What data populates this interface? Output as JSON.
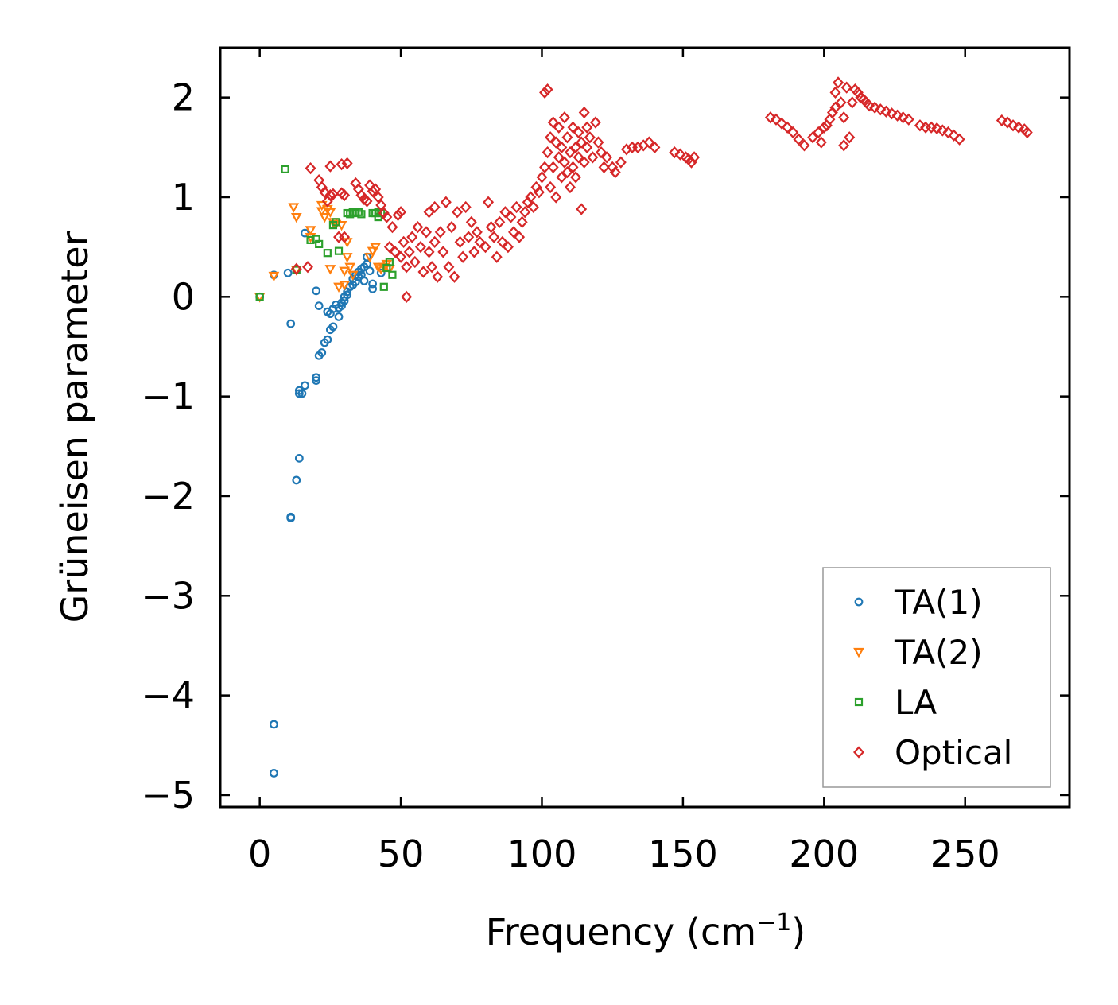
{
  "chart_data": {
    "type": "scatter",
    "title": "",
    "xlabel": "Frequency (cm",
    "xlabel_superscript": "−1",
    "xlabel_suffix": ")",
    "ylabel": "Grüneisen parameter",
    "xlim": [
      -14,
      287
    ],
    "ylim": [
      -5.12,
      2.5
    ],
    "xticks": [
      0,
      50,
      100,
      150,
      200,
      250
    ],
    "xtick_labels": [
      "0",
      "50",
      "100",
      "150",
      "200",
      "250"
    ],
    "yticks": [
      -5,
      -4,
      -3,
      -2,
      -1,
      0,
      1,
      2
    ],
    "ytick_labels": [
      "−5",
      "−4",
      "−3",
      "−2",
      "−1",
      "0",
      "1",
      "2"
    ],
    "legend": {
      "position": "lower-right"
    },
    "series": [
      {
        "name": "TA(1)",
        "marker": "circle",
        "color": "#1f77b4",
        "points": [
          [
            0,
            0.0
          ],
          [
            5,
            0.22
          ],
          [
            10,
            0.24
          ],
          [
            11,
            -0.27
          ],
          [
            5,
            -4.29
          ],
          [
            5,
            -4.78
          ],
          [
            11,
            -2.21
          ],
          [
            11,
            -2.22
          ],
          [
            13,
            -1.84
          ],
          [
            14,
            -1.62
          ],
          [
            14,
            -0.97
          ],
          [
            14,
            -0.94
          ],
          [
            15,
            -0.97
          ],
          [
            16,
            -0.89
          ],
          [
            16,
            0.64
          ],
          [
            20,
            -0.84
          ],
          [
            20,
            -0.81
          ],
          [
            20,
            0.06
          ],
          [
            21,
            -0.09
          ],
          [
            21,
            -0.59
          ],
          [
            22,
            -0.56
          ],
          [
            23,
            -0.46
          ],
          [
            24,
            -0.43
          ],
          [
            24,
            -0.15
          ],
          [
            25,
            -0.33
          ],
          [
            25,
            -0.17
          ],
          [
            26,
            -0.3
          ],
          [
            26,
            -0.12
          ],
          [
            27,
            -0.08
          ],
          [
            28,
            -0.2
          ],
          [
            28,
            -0.11
          ],
          [
            29,
            -0.06
          ],
          [
            29,
            -0.09
          ],
          [
            30,
            -0.04
          ],
          [
            30,
            0.0
          ],
          [
            31,
            0.02
          ],
          [
            31,
            0.05
          ],
          [
            32,
            0.1
          ],
          [
            33,
            0.12
          ],
          [
            33,
            0.18
          ],
          [
            34,
            0.15
          ],
          [
            34,
            0.22
          ],
          [
            35,
            0.2
          ],
          [
            35,
            0.25
          ],
          [
            36,
            0.22
          ],
          [
            36,
            0.28
          ],
          [
            37,
            0.16
          ],
          [
            37,
            0.3
          ],
          [
            38,
            0.33
          ],
          [
            38,
            0.4
          ],
          [
            39,
            0.26
          ],
          [
            40,
            0.08
          ],
          [
            40,
            0.13
          ],
          [
            43,
            0.24
          ]
        ]
      },
      {
        "name": "TA(2)",
        "marker": "triangle-down",
        "color": "#ff7f0e",
        "points": [
          [
            0,
            0.0
          ],
          [
            5,
            0.21
          ],
          [
            12,
            0.9
          ],
          [
            13,
            0.8
          ],
          [
            13,
            0.27
          ],
          [
            18,
            0.67
          ],
          [
            18,
            0.6
          ],
          [
            22,
            0.92
          ],
          [
            22,
            0.86
          ],
          [
            23,
            0.8
          ],
          [
            24,
            0.88
          ],
          [
            25,
            0.85
          ],
          [
            25,
            0.28
          ],
          [
            26,
            0.75
          ],
          [
            27,
            0.73
          ],
          [
            28,
            0.1
          ],
          [
            29,
            0.72
          ],
          [
            30,
            0.26
          ],
          [
            30,
            0.12
          ],
          [
            31,
            0.55
          ],
          [
            31,
            0.4
          ],
          [
            32,
            0.3
          ],
          [
            33,
            0.22
          ],
          [
            39,
            0.4
          ],
          [
            40,
            0.46
          ],
          [
            41,
            0.5
          ],
          [
            42,
            0.3
          ],
          [
            43,
            0.28
          ],
          [
            44,
            0.3
          ],
          [
            45,
            0.33
          ],
          [
            46,
            0.28
          ]
        ]
      },
      {
        "name": "LA",
        "marker": "square",
        "color": "#2ca02c",
        "points": [
          [
            0,
            0.0
          ],
          [
            9,
            1.28
          ],
          [
            13,
            0.27
          ],
          [
            18,
            0.57
          ],
          [
            20,
            0.58
          ],
          [
            21,
            0.53
          ],
          [
            24,
            0.44
          ],
          [
            26,
            0.72
          ],
          [
            27,
            0.75
          ],
          [
            28,
            0.46
          ],
          [
            31,
            0.84
          ],
          [
            32,
            0.83
          ],
          [
            33,
            0.85
          ],
          [
            34,
            0.84
          ],
          [
            35,
            0.85
          ],
          [
            36,
            0.83
          ],
          [
            40,
            0.84
          ],
          [
            41,
            0.84
          ],
          [
            42,
            0.85
          ],
          [
            42,
            0.8
          ],
          [
            43,
            0.84
          ],
          [
            44,
            0.1
          ],
          [
            45,
            0.29
          ],
          [
            46,
            0.35
          ],
          [
            47,
            0.22
          ]
        ]
      },
      {
        "name": "Optical",
        "marker": "diamond",
        "color": "#d62728",
        "points": [
          [
            13,
            0.28
          ],
          [
            17,
            0.3
          ],
          [
            18,
            1.29
          ],
          [
            21,
            1.17
          ],
          [
            22,
            1.1
          ],
          [
            23,
            1.05
          ],
          [
            24,
            0.96
          ],
          [
            25,
            1.31
          ],
          [
            25,
            1.02
          ],
          [
            26,
            1.03
          ],
          [
            28,
            0.6
          ],
          [
            29,
            1.33
          ],
          [
            29,
            1.04
          ],
          [
            30,
            1.02
          ],
          [
            30,
            0.6
          ],
          [
            31,
            1.34
          ],
          [
            34,
            1.14
          ],
          [
            35,
            1.08
          ],
          [
            36,
            1.02
          ],
          [
            37,
            0.98
          ],
          [
            38,
            0.96
          ],
          [
            39,
            1.12
          ],
          [
            40,
            1.06
          ],
          [
            41,
            1.08
          ],
          [
            42,
            1.0
          ],
          [
            43,
            0.92
          ],
          [
            44,
            0.84
          ],
          [
            45,
            0.8
          ],
          [
            46,
            0.5
          ],
          [
            47,
            0.7
          ],
          [
            48,
            0.45
          ],
          [
            49,
            0.82
          ],
          [
            50,
            0.85
          ],
          [
            50,
            0.4
          ],
          [
            51,
            0.55
          ],
          [
            52,
            0.3
          ],
          [
            52,
            0.0
          ],
          [
            53,
            0.45
          ],
          [
            54,
            0.6
          ],
          [
            55,
            0.35
          ],
          [
            56,
            0.7
          ],
          [
            57,
            0.5
          ],
          [
            58,
            0.25
          ],
          [
            59,
            0.65
          ],
          [
            60,
            0.45
          ],
          [
            60,
            0.85
          ],
          [
            61,
            0.3
          ],
          [
            62,
            0.55
          ],
          [
            62,
            0.9
          ],
          [
            63,
            0.2
          ],
          [
            64,
            0.65
          ],
          [
            65,
            0.45
          ],
          [
            66,
            0.95
          ],
          [
            67,
            0.3
          ],
          [
            68,
            0.7
          ],
          [
            69,
            0.2
          ],
          [
            70,
            0.85
          ],
          [
            71,
            0.55
          ],
          [
            72,
            0.4
          ],
          [
            73,
            0.9
          ],
          [
            74,
            0.6
          ],
          [
            75,
            0.75
          ],
          [
            76,
            0.45
          ],
          [
            77,
            0.65
          ],
          [
            78,
            0.55
          ],
          [
            80,
            0.5
          ],
          [
            81,
            0.95
          ],
          [
            82,
            0.7
          ],
          [
            83,
            0.6
          ],
          [
            84,
            0.4
          ],
          [
            85,
            0.75
          ],
          [
            86,
            0.55
          ],
          [
            87,
            0.85
          ],
          [
            88,
            0.5
          ],
          [
            89,
            0.8
          ],
          [
            90,
            0.65
          ],
          [
            91,
            0.9
          ],
          [
            92,
            0.6
          ],
          [
            93,
            0.75
          ],
          [
            94,
            0.85
          ],
          [
            95,
            0.95
          ],
          [
            96,
            1.0
          ],
          [
            97,
            0.9
          ],
          [
            98,
            1.1
          ],
          [
            99,
            1.05
          ],
          [
            100,
            1.2
          ],
          [
            101,
            1.3
          ],
          [
            101,
            2.05
          ],
          [
            102,
            2.08
          ],
          [
            102,
            1.45
          ],
          [
            103,
            1.6
          ],
          [
            103,
            1.1
          ],
          [
            104,
            1.75
          ],
          [
            104,
            1.3
          ],
          [
            105,
            1.55
          ],
          [
            105,
            1.0
          ],
          [
            106,
            1.4
          ],
          [
            106,
            1.7
          ],
          [
            107,
            1.2
          ],
          [
            107,
            1.5
          ],
          [
            108,
            1.35
          ],
          [
            108,
            1.8
          ],
          [
            109,
            1.25
          ],
          [
            109,
            1.6
          ],
          [
            110,
            1.45
          ],
          [
            110,
            1.1
          ],
          [
            111,
            1.7
          ],
          [
            111,
            1.3
          ],
          [
            112,
            1.5
          ],
          [
            112,
            1.2
          ],
          [
            113,
            1.65
          ],
          [
            113,
            1.4
          ],
          [
            114,
            0.88
          ],
          [
            114,
            1.55
          ],
          [
            115,
            1.85
          ],
          [
            115,
            1.35
          ],
          [
            116,
            1.7
          ],
          [
            116,
            1.5
          ],
          [
            117,
            1.6
          ],
          [
            118,
            1.4
          ],
          [
            119,
            1.75
          ],
          [
            120,
            1.55
          ],
          [
            121,
            1.45
          ],
          [
            122,
            1.3
          ],
          [
            123,
            1.4
          ],
          [
            125,
            1.3
          ],
          [
            126,
            1.25
          ],
          [
            128,
            1.35
          ],
          [
            130,
            1.48
          ],
          [
            132,
            1.5
          ],
          [
            134,
            1.5
          ],
          [
            136,
            1.52
          ],
          [
            138,
            1.55
          ],
          [
            140,
            1.5
          ],
          [
            147,
            1.45
          ],
          [
            149,
            1.43
          ],
          [
            151,
            1.4
          ],
          [
            152,
            1.38
          ],
          [
            153,
            1.35
          ],
          [
            154,
            1.4
          ],
          [
            181,
            1.8
          ],
          [
            183,
            1.78
          ],
          [
            185,
            1.74
          ],
          [
            187,
            1.7
          ],
          [
            189,
            1.65
          ],
          [
            191,
            1.58
          ],
          [
            193,
            1.52
          ],
          [
            196,
            1.6
          ],
          [
            198,
            1.65
          ],
          [
            199,
            1.55
          ],
          [
            200,
            1.7
          ],
          [
            201,
            1.72
          ],
          [
            202,
            1.78
          ],
          [
            203,
            1.85
          ],
          [
            204,
            2.05
          ],
          [
            204,
            1.9
          ],
          [
            205,
            2.15
          ],
          [
            206,
            1.95
          ],
          [
            207,
            1.52
          ],
          [
            207,
            1.8
          ],
          [
            208,
            2.1
          ],
          [
            209,
            1.6
          ],
          [
            210,
            1.95
          ],
          [
            211,
            2.08
          ],
          [
            212,
            2.05
          ],
          [
            213,
            2.0
          ],
          [
            214,
            1.98
          ],
          [
            215,
            1.95
          ],
          [
            216,
            1.92
          ],
          [
            218,
            1.9
          ],
          [
            220,
            1.88
          ],
          [
            222,
            1.86
          ],
          [
            224,
            1.84
          ],
          [
            226,
            1.82
          ],
          [
            228,
            1.8
          ],
          [
            230,
            1.78
          ],
          [
            234,
            1.72
          ],
          [
            236,
            1.7
          ],
          [
            238,
            1.7
          ],
          [
            240,
            1.69
          ],
          [
            242,
            1.67
          ],
          [
            244,
            1.65
          ],
          [
            246,
            1.62
          ],
          [
            248,
            1.58
          ],
          [
            263,
            1.77
          ],
          [
            265,
            1.75
          ],
          [
            267,
            1.72
          ],
          [
            269,
            1.7
          ],
          [
            271,
            1.68
          ],
          [
            272,
            1.65
          ]
        ]
      }
    ]
  }
}
